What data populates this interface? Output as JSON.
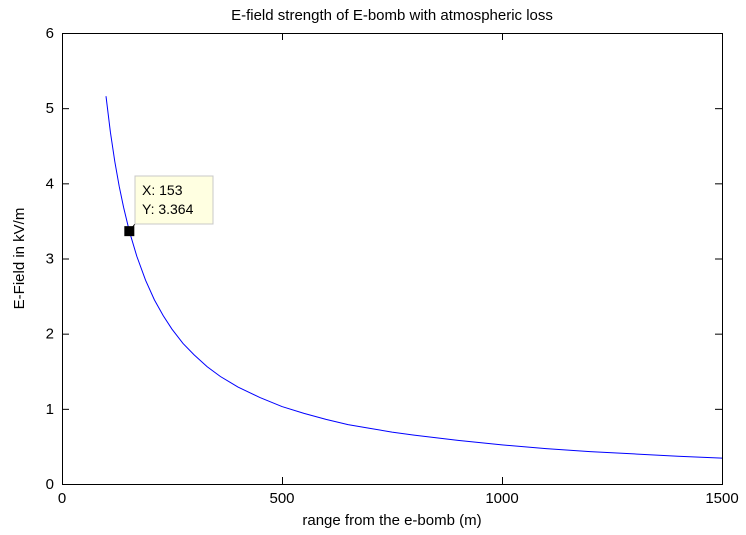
{
  "chart_data": {
    "type": "line",
    "title": "E-field strength of E-bomb with atmospheric loss",
    "xlabel": "range from the e-bomb (m)",
    "ylabel": "E-Field in kV/m",
    "xlim": [
      0,
      1500
    ],
    "ylim": [
      0,
      6
    ],
    "xticks": [
      0,
      500,
      1000,
      1500
    ],
    "yticks": [
      0,
      1,
      2,
      3,
      4,
      5,
      6
    ],
    "grid": false,
    "series": [
      {
        "color": "#0000ff",
        "x": [
          100,
          110,
          120,
          130,
          140,
          153,
          170,
          190,
          210,
          230,
          250,
          275,
          300,
          330,
          360,
          400,
          450,
          500,
          550,
          600,
          650,
          700,
          750,
          800,
          900,
          1000,
          1100,
          1200,
          1300,
          1400,
          1500
        ],
        "y": [
          5.16,
          4.68,
          4.29,
          3.96,
          3.68,
          3.364,
          3.03,
          2.71,
          2.45,
          2.24,
          2.06,
          1.87,
          1.72,
          1.56,
          1.43,
          1.29,
          1.15,
          1.03,
          0.94,
          0.86,
          0.79,
          0.74,
          0.69,
          0.65,
          0.58,
          0.52,
          0.47,
          0.43,
          0.4,
          0.37,
          0.345
        ]
      }
    ],
    "annotations": [
      {
        "x": 153,
        "y": 3.364,
        "x_text": "X: 153",
        "y_text": "Y: 3.364"
      }
    ]
  }
}
